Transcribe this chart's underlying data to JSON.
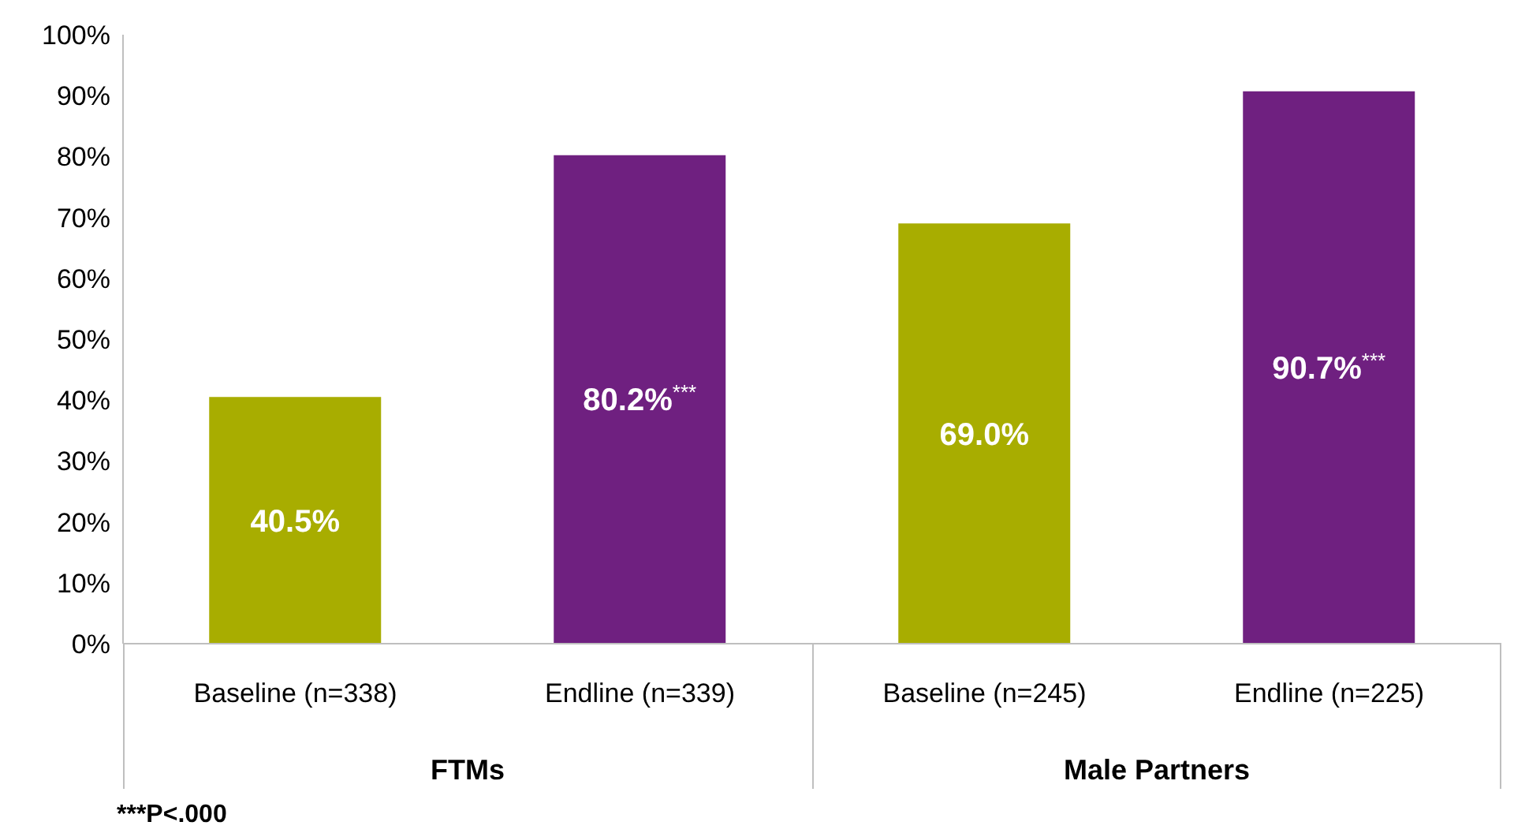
{
  "chart_data": {
    "type": "bar",
    "categories": [
      "Baseline (n=338)",
      "Endline (n=339)",
      "Baseline (n=245)",
      "Endline (n=225)"
    ],
    "values": [
      40.5,
      80.2,
      69.0,
      90.7
    ],
    "colors": [
      "#a8ad00",
      "#6f2080",
      "#a8ad00",
      "#6f2080"
    ],
    "value_labels": [
      "40.5%",
      "80.2%$^{***}$",
      "69.0%",
      "90.7%$^{***}$"
    ],
    "ylim": [
      0,
      100
    ],
    "yticks": [
      {
        "value": 0,
        "label": "0%"
      },
      {
        "value": 10,
        "label": "10%"
      },
      {
        "value": 20,
        "label": "20%"
      },
      {
        "value": 30,
        "label": "30%"
      },
      {
        "value": 40,
        "label": "40%"
      },
      {
        "value": 50,
        "label": "50%"
      },
      {
        "value": 60,
        "label": "60%"
      },
      {
        "value": 70,
        "label": "70%"
      },
      {
        "value": 80,
        "label": "80%"
      },
      {
        "value": 90,
        "label": "90%"
      },
      {
        "value": 100,
        "label": "100%"
      }
    ],
    "grid": false,
    "legend": false,
    "annotations": [
      "FTMs",
      "Male Partners",
      "***P<.000"
    ]
  }
}
